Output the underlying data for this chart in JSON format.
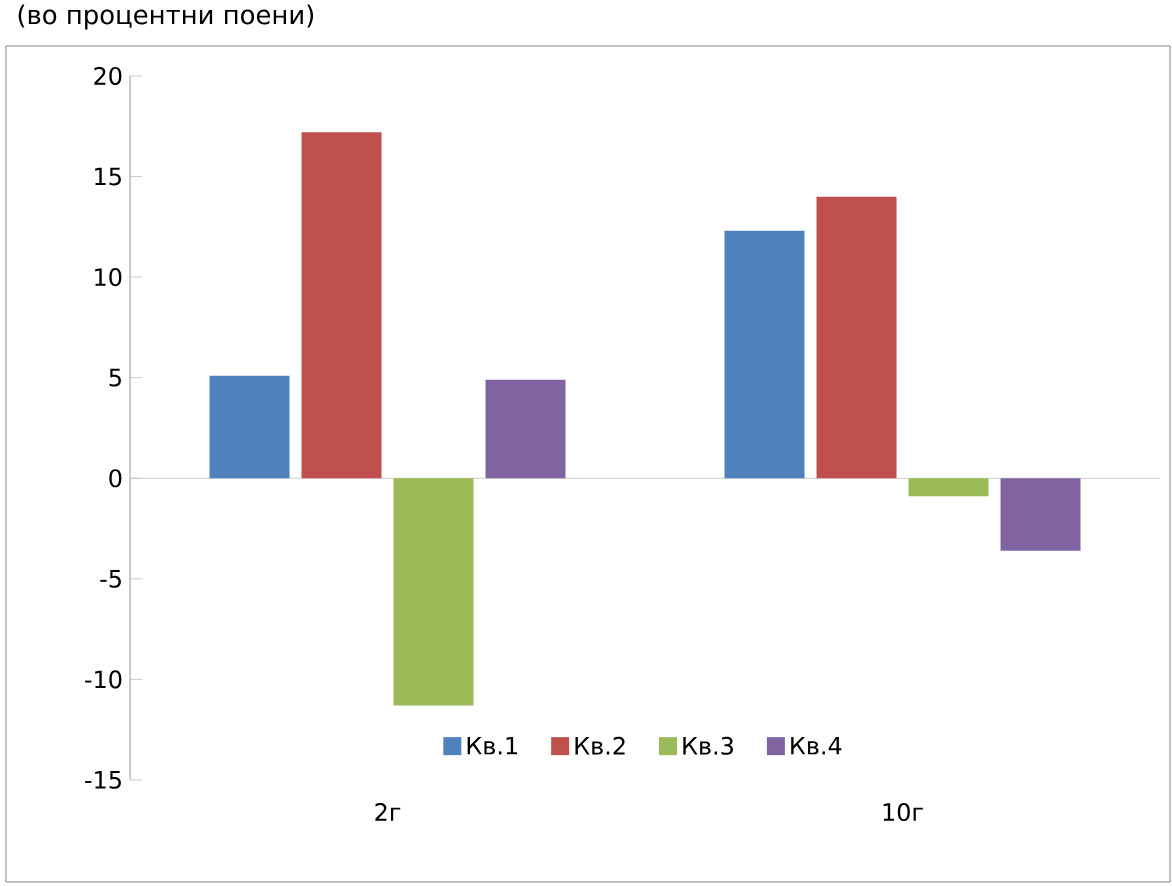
{
  "chart_data": {
    "type": "bar",
    "title": "(во процентни поени)",
    "categories": [
      "2г",
      "10г"
    ],
    "series": [
      {
        "name": "Кв.1",
        "color": "#4f81bd",
        "values": [
          5.1,
          12.3
        ]
      },
      {
        "name": "Кв.2",
        "color": "#c0504d",
        "values": [
          17.2,
          14.0
        ]
      },
      {
        "name": "Кв.3",
        "color": "#9bbb59",
        "values": [
          -11.3,
          -0.9
        ]
      },
      {
        "name": "Кв.4",
        "color": "#8064a2",
        "values": [
          4.9,
          -3.6
        ]
      }
    ],
    "ylim": [
      -15,
      20
    ],
    "yticks": [
      -15,
      -10,
      -5,
      0,
      5,
      10,
      15,
      20
    ],
    "legend": "bottom"
  }
}
